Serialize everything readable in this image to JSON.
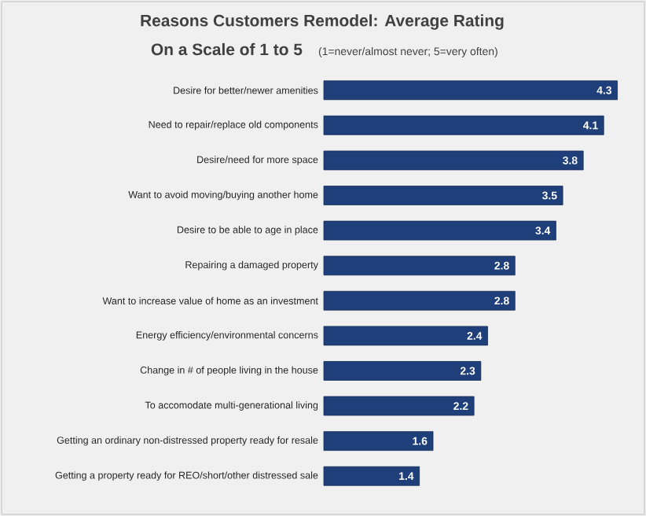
{
  "chart_data": {
    "type": "bar",
    "orientation": "horizontal",
    "title": "Reasons Customers Remodel: Average Rating",
    "subtitle": "On a Scale of 1 to 5",
    "annotations": [
      "(1=never/almost never; 5=very often)"
    ],
    "categories": [
      "Desire for better/newer amenities",
      "Need to repair/replace old components",
      "Desire/need for more space",
      "Want to avoid moving/buying another home",
      "Desire to be able to age in place",
      "Repairing a damaged property",
      "Want to increase value of home as an investment",
      "Energy efficiency/environmental concerns",
      "Change in # of people living in the house",
      "To accomodate multi-generational living",
      "Getting an ordinary non-distressed property ready for resale",
      "Getting a property ready for REO/short/other distressed sale"
    ],
    "values": [
      4.3,
      4.1,
      3.8,
      3.5,
      3.4,
      2.8,
      2.8,
      2.4,
      2.3,
      2.2,
      1.6,
      1.4
    ],
    "color": "#1f3f7a",
    "data_labels": true
  }
}
